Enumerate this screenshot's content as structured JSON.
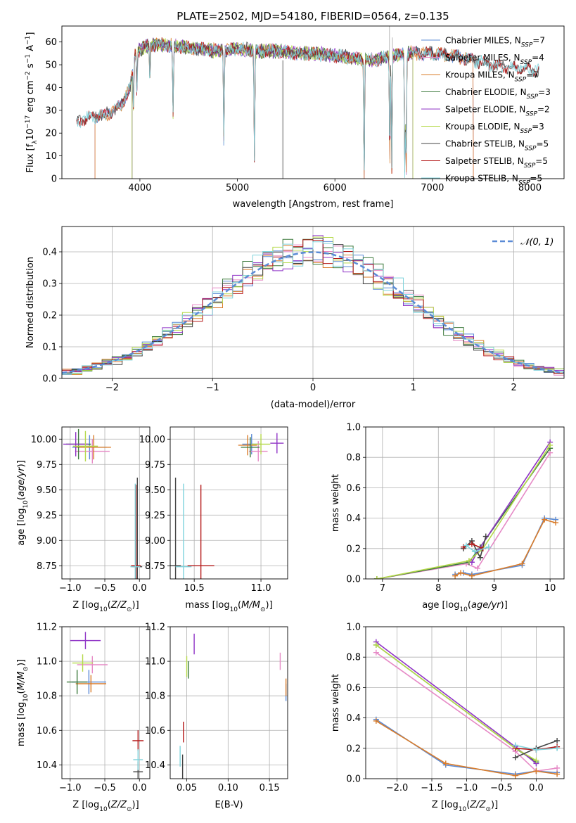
{
  "colors": {
    "Chabrier MILES": "#5b8bd6",
    "Salpeter MILES": "#e68ac6",
    "Kroupa MILES": "#d97c2a",
    "Chabrier ELODIE": "#3d7a3d",
    "Salpeter ELODIE": "#8f33c6",
    "Kroupa ELODIE": "#b5d94a",
    "Chabrier STELIB": "#444444",
    "Salpeter STELIB": "#b51a1a",
    "Kroupa STELIB": "#7fd3dc",
    "normal": "#5b8bd6"
  },
  "chart_data": [
    {
      "id": "spectrum",
      "type": "line",
      "title": "PLATE=2502, MJD=54180, FIBERID=0564, z=0.135",
      "xlabel": "wavelength [Angstrom, rest frame]",
      "ylabel": "Flux [f_λ10^-17 erg cm^-2 s^-1 A^-1]",
      "xlim": [
        3200,
        8350
      ],
      "ylim": [
        0,
        67
      ],
      "xticks": [
        4000,
        5000,
        6000,
        7000,
        8000
      ],
      "yticks": [
        0,
        10,
        20,
        30,
        40,
        50,
        60
      ],
      "grid": false,
      "legend_position": "top-right",
      "legend": [
        {
          "label": "Chabrier MILES, N",
          "sub": "SSP",
          "suffix": "=7"
        },
        {
          "label": "Salpeter MILES, N",
          "sub": "SSP",
          "suffix": "=4"
        },
        {
          "label": "Kroupa MILES, N",
          "sub": "SSP",
          "suffix": "=7"
        },
        {
          "label": "Chabrier ELODIE, N",
          "sub": "SSP",
          "suffix": "=3"
        },
        {
          "label": "Salpeter ELODIE, N",
          "sub": "SSP",
          "suffix": "=2"
        },
        {
          "label": "Kroupa ELODIE, N",
          "sub": "SSP",
          "suffix": "=3"
        },
        {
          "label": "Chabrier STELIB, N",
          "sub": "SSP",
          "suffix": "=5"
        },
        {
          "label": "Salpeter STELIB, N",
          "sub": "SSP",
          "suffix": "=5"
        },
        {
          "label": "Kroupa STELIB, N",
          "sub": "SSP",
          "suffix": "=5"
        }
      ],
      "continuum": [
        [
          3350,
          25
        ],
        [
          3500,
          27
        ],
        [
          3650,
          28
        ],
        [
          3800,
          32
        ],
        [
          3900,
          40
        ],
        [
          3950,
          55
        ],
        [
          4050,
          58
        ],
        [
          4200,
          59
        ],
        [
          4400,
          58
        ],
        [
          4600,
          57
        ],
        [
          4800,
          56
        ],
        [
          5000,
          57
        ],
        [
          5200,
          56
        ],
        [
          5400,
          56
        ],
        [
          5600,
          55
        ],
        [
          5800,
          55
        ],
        [
          6000,
          54
        ],
        [
          6200,
          53
        ],
        [
          6400,
          52
        ],
        [
          6600,
          54
        ],
        [
          6800,
          55
        ],
        [
          7000,
          55
        ],
        [
          7200,
          54
        ],
        [
          7400,
          52
        ],
        [
          7600,
          50
        ],
        [
          7800,
          49
        ],
        [
          8000,
          48
        ],
        [
          8100,
          47
        ]
      ],
      "lines": [
        [
          3934,
          20
        ],
        [
          3969,
          18
        ],
        [
          4102,
          14
        ],
        [
          4340,
          30
        ],
        [
          4861,
          40
        ],
        [
          5175,
          48
        ],
        [
          6563,
          45
        ],
        [
          6583,
          51
        ],
        [
          6300,
          54
        ],
        [
          6717,
          54
        ],
        [
          6731,
          53
        ]
      ]
    },
    {
      "id": "residuals",
      "type": "histogram",
      "xlabel": "(data-model)/error",
      "ylabel": "Normed distribution",
      "xlim": [
        -2.5,
        2.5
      ],
      "ylim": [
        0,
        0.48
      ],
      "xticks": [
        -2,
        -1,
        0,
        1,
        2
      ],
      "yticks": [
        0.0,
        0.1,
        0.2,
        0.3,
        0.4
      ],
      "grid": true,
      "legend_position": "top-right",
      "normal_label": "𝒩(0, 1)",
      "bin_width": 0.1
    },
    {
      "id": "age-vs-Z",
      "type": "errorbar",
      "xlabel": "Z [log10(Z/Z⊙)]",
      "ylabel": "age  [log10(age/yr)]",
      "xlim": [
        -1.12,
        0.15
      ],
      "ylim": [
        8.62,
        10.12
      ],
      "xticks": [
        -1.0,
        -0.5,
        0.0
      ],
      "yticks": [
        8.75,
        9.0,
        9.25,
        9.5,
        9.75,
        10.0
      ],
      "grid": true,
      "points": [
        {
          "series": "Chabrier MILES",
          "x": -0.72,
          "y": 9.92,
          "xerr": 0.25,
          "yerr": 0.12
        },
        {
          "series": "Salpeter MILES",
          "x": -0.68,
          "y": 9.88,
          "xerr": 0.25,
          "yerr": 0.12
        },
        {
          "series": "Kroupa MILES",
          "x": -0.66,
          "y": 9.92,
          "xerr": 0.25,
          "yerr": 0.12
        },
        {
          "series": "Chabrier ELODIE",
          "x": -0.88,
          "y": 9.95,
          "xerr": 0.18,
          "yerr": 0.15
        },
        {
          "series": "Salpeter ELODIE",
          "x": -0.92,
          "y": 9.95,
          "xerr": 0.18,
          "yerr": 0.12
        },
        {
          "series": "Kroupa ELODIE",
          "x": -0.78,
          "y": 9.93,
          "xerr": 0.18,
          "yerr": 0.15
        },
        {
          "series": "Chabrier STELIB",
          "x": -0.03,
          "y": 8.74,
          "xerr": 0.07,
          "yerr": 0.88
        },
        {
          "series": "Salpeter STELIB",
          "x": -0.05,
          "y": 8.75,
          "xerr": 0.07,
          "yerr": 0.8
        },
        {
          "series": "Kroupa STELIB",
          "x": -0.06,
          "y": 8.74,
          "xerr": 0.07,
          "yerr": 0.82
        }
      ]
    },
    {
      "id": "age-vs-mass",
      "type": "errorbar",
      "xlabel": "mass [log10(M/M⊙)]",
      "ylabel": "",
      "xlim": [
        10.32,
        11.2
      ],
      "ylim": [
        8.62,
        10.12
      ],
      "xticks": [
        10.5,
        11.0
      ],
      "yticks": [
        8.75,
        9.0,
        9.25,
        9.5,
        9.75,
        10.0
      ],
      "grid": true,
      "points": [
        {
          "series": "Chabrier MILES",
          "x": 10.93,
          "y": 9.95,
          "xerr": 0.07,
          "yerr": 0.1
        },
        {
          "series": "Salpeter MILES",
          "x": 10.98,
          "y": 9.88,
          "xerr": 0.07,
          "yerr": 0.1
        },
        {
          "series": "Kroupa MILES",
          "x": 10.9,
          "y": 9.94,
          "xerr": 0.07,
          "yerr": 0.1
        },
        {
          "series": "Chabrier ELODIE",
          "x": 10.92,
          "y": 9.92,
          "xerr": 0.07,
          "yerr": 0.1
        },
        {
          "series": "Salpeter ELODIE",
          "x": 11.12,
          "y": 9.96,
          "xerr": 0.05,
          "yerr": 0.1
        },
        {
          "series": "Kroupa ELODIE",
          "x": 11.0,
          "y": 9.95,
          "xerr": 0.07,
          "yerr": 0.1
        },
        {
          "series": "Chabrier STELIB",
          "x": 10.36,
          "y": 8.75,
          "xerr": 0.04,
          "yerr": 0.87
        },
        {
          "series": "Salpeter STELIB",
          "x": 10.55,
          "y": 8.75,
          "xerr": 0.1,
          "yerr": 0.8
        },
        {
          "series": "Kroupa STELIB",
          "x": 10.42,
          "y": 8.74,
          "xerr": 0.06,
          "yerr": 0.82
        }
      ]
    },
    {
      "id": "weight-vs-age",
      "type": "line",
      "xlabel": "age  [log10(age/yr)]",
      "ylabel": "mass weight",
      "xlim": [
        6.7,
        10.25
      ],
      "ylim": [
        0,
        1.0
      ],
      "xticks": [
        7,
        8,
        9,
        10
      ],
      "yticks": [
        0.0,
        0.2,
        0.4,
        0.6,
        0.8,
        1.0
      ],
      "grid": true,
      "series": [
        {
          "series": "Chabrier MILES",
          "x": [
            8.3,
            8.45,
            8.6,
            9.5,
            9.9,
            10.1
          ],
          "y": [
            0.03,
            0.04,
            0.03,
            0.09,
            0.4,
            0.39
          ]
        },
        {
          "series": "Salpeter MILES",
          "x": [
            6.9,
            8.5,
            8.7,
            10.0
          ],
          "y": [
            0.0,
            0.1,
            0.07,
            0.83
          ]
        },
        {
          "series": "Kroupa MILES",
          "x": [
            8.3,
            8.4,
            8.6,
            9.5,
            9.9,
            10.1
          ],
          "y": [
            0.02,
            0.04,
            0.02,
            0.1,
            0.39,
            0.37
          ]
        },
        {
          "series": "Chabrier ELODIE",
          "x": [
            6.9,
            8.55,
            8.75,
            10.0
          ],
          "y": [
            0.0,
            0.11,
            0.21,
            0.86
          ]
        },
        {
          "series": "Salpeter ELODIE",
          "x": [
            8.6,
            8.7,
            10.0
          ],
          "y": [
            0.11,
            0.18,
            0.9
          ]
        },
        {
          "series": "Kroupa ELODIE",
          "x": [
            6.9,
            8.55,
            8.8,
            10.0
          ],
          "y": [
            0.0,
            0.12,
            0.2,
            0.88
          ]
        },
        {
          "series": "Chabrier STELIB",
          "x": [
            8.45,
            8.6,
            8.75,
            8.85
          ],
          "y": [
            0.2,
            0.25,
            0.14,
            0.28
          ]
        },
        {
          "series": "Salpeter STELIB",
          "x": [
            8.45,
            8.6,
            8.8
          ],
          "y": [
            0.21,
            0.23,
            0.2
          ]
        },
        {
          "series": "Kroupa STELIB",
          "x": [
            8.5,
            8.65,
            8.9
          ],
          "y": [
            0.22,
            0.18,
            0.21
          ]
        }
      ]
    },
    {
      "id": "mass-vs-Z",
      "type": "errorbar",
      "xlabel": "Z [log10(Z/Z⊙)]",
      "ylabel": "mass [log10(M/M⊙)]",
      "xlim": [
        -1.12,
        0.15
      ],
      "ylim": [
        10.32,
        11.2
      ],
      "xticks": [
        -1.0,
        -0.5,
        0.0
      ],
      "yticks": [
        10.4,
        10.6,
        10.8,
        11.0,
        11.2
      ],
      "grid": true,
      "points": [
        {
          "series": "Chabrier MILES",
          "x": -0.73,
          "y": 10.88,
          "xerr": 0.25,
          "yerr": 0.07
        },
        {
          "series": "Salpeter MILES",
          "x": -0.68,
          "y": 10.98,
          "xerr": 0.22,
          "yerr": 0.05
        },
        {
          "series": "Kroupa MILES",
          "x": -0.7,
          "y": 10.87,
          "xerr": 0.22,
          "yerr": 0.05
        },
        {
          "series": "Chabrier ELODIE",
          "x": -0.9,
          "y": 10.88,
          "xerr": 0.15,
          "yerr": 0.07
        },
        {
          "series": "Salpeter ELODIE",
          "x": -0.78,
          "y": 11.12,
          "xerr": 0.22,
          "yerr": 0.05
        },
        {
          "series": "Kroupa ELODIE",
          "x": -0.82,
          "y": 10.99,
          "xerr": 0.15,
          "yerr": 0.05
        },
        {
          "series": "Chabrier STELIB",
          "x": -0.02,
          "y": 10.36,
          "xerr": 0.07,
          "yerr": 0.06
        },
        {
          "series": "Salpeter STELIB",
          "x": -0.02,
          "y": 10.54,
          "xerr": 0.08,
          "yerr": 0.06
        },
        {
          "series": "Kroupa STELIB",
          "x": -0.02,
          "y": 10.43,
          "xerr": 0.07,
          "yerr": 0.06
        }
      ]
    },
    {
      "id": "mass-vs-EBV",
      "type": "errorbar",
      "xlabel": "E(B-V)",
      "ylabel": "",
      "xlim": [
        0.03,
        0.172
      ],
      "ylim": [
        10.32,
        11.2
      ],
      "xticks": [
        0.05,
        0.1,
        0.15
      ],
      "yticks": [
        10.4,
        10.6,
        10.8,
        11.0,
        11.2
      ],
      "grid": true,
      "points": [
        {
          "series": "Chabrier MILES",
          "x": 0.17,
          "y": 10.82,
          "xerr": 0.0,
          "yerr": 0.05
        },
        {
          "series": "Salpeter MILES",
          "x": 0.163,
          "y": 11.0,
          "xerr": 0.0,
          "yerr": 0.05
        },
        {
          "series": "Kroupa MILES",
          "x": 0.17,
          "y": 10.85,
          "xerr": 0.0,
          "yerr": 0.05
        },
        {
          "series": "Chabrier ELODIE",
          "x": 0.052,
          "y": 10.95,
          "xerr": 0.0,
          "yerr": 0.05
        },
        {
          "series": "Salpeter ELODIE",
          "x": 0.059,
          "y": 11.1,
          "xerr": 0.0,
          "yerr": 0.06
        },
        {
          "series": "Kroupa ELODIE",
          "x": 0.05,
          "y": 10.97,
          "xerr": 0.0,
          "yerr": 0.06
        },
        {
          "series": "Chabrier STELIB",
          "x": 0.045,
          "y": 10.39,
          "xerr": 0.0,
          "yerr": 0.07
        },
        {
          "series": "Salpeter STELIB",
          "x": 0.046,
          "y": 10.59,
          "xerr": 0.0,
          "yerr": 0.06
        },
        {
          "series": "Kroupa STELIB",
          "x": 0.042,
          "y": 10.45,
          "xerr": 0.0,
          "yerr": 0.06
        }
      ]
    },
    {
      "id": "weight-vs-Z",
      "type": "line",
      "xlabel": "Z [log10(Z/Z⊙)]",
      "ylabel": "mass weight",
      "xlim": [
        -2.45,
        0.4
      ],
      "ylim": [
        0,
        1.0
      ],
      "xticks": [
        -2.0,
        -1.5,
        -1.0,
        -0.5,
        0.0
      ],
      "yticks": [
        0.0,
        0.2,
        0.4,
        0.6,
        0.8,
        1.0
      ],
      "grid": true,
      "series": [
        {
          "series": "Chabrier MILES",
          "x": [
            -2.3,
            -1.3,
            -0.3,
            0.0,
            0.3
          ],
          "y": [
            0.39,
            0.09,
            0.03,
            0.05,
            0.04
          ]
        },
        {
          "series": "Salpeter MILES",
          "x": [
            -2.3,
            -0.3,
            0.0,
            0.3
          ],
          "y": [
            0.83,
            0.18,
            0.05,
            0.07
          ]
        },
        {
          "series": "Kroupa MILES",
          "x": [
            -2.3,
            -1.3,
            -0.3,
            0.0,
            0.3
          ],
          "y": [
            0.38,
            0.1,
            0.02,
            0.05,
            0.03
          ]
        },
        {
          "series": "Chabrier ELODIE",
          "x": [
            -2.3,
            -0.3,
            0.0
          ],
          "y": [
            0.88,
            0.2,
            0.11
          ]
        },
        {
          "series": "Salpeter ELODIE",
          "x": [
            -2.3,
            -0.3,
            0.0
          ],
          "y": [
            0.9,
            0.21,
            0.1
          ]
        },
        {
          "series": "Kroupa ELODIE",
          "x": [
            -2.3,
            -0.3,
            0.0
          ],
          "y": [
            0.88,
            0.2,
            0.12
          ]
        },
        {
          "series": "Chabrier STELIB",
          "x": [
            -0.3,
            0.0,
            0.3
          ],
          "y": [
            0.14,
            0.2,
            0.25
          ]
        },
        {
          "series": "Salpeter STELIB",
          "x": [
            -0.3,
            0.0,
            0.3
          ],
          "y": [
            0.2,
            0.19,
            0.21
          ]
        },
        {
          "series": "Kroupa STELIB",
          "x": [
            -0.3,
            0.0,
            0.3
          ],
          "y": [
            0.22,
            0.19,
            0.2
          ]
        }
      ]
    }
  ]
}
